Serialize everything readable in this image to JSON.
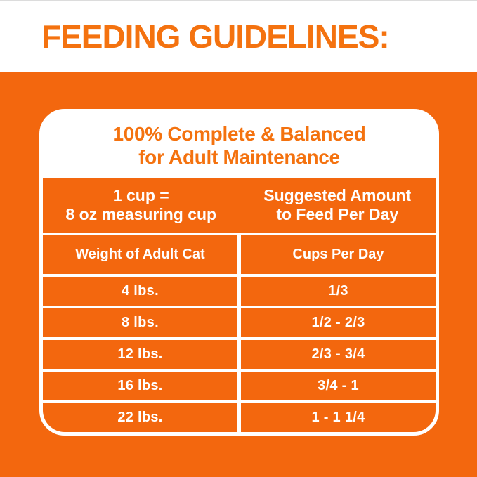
{
  "page": {
    "title": "FEEDING GUIDELINES:",
    "colors": {
      "brand_orange": "#F3670E",
      "heading_orange": "#F4720F",
      "text_on_orange": "#FFFFFF",
      "top_border_gray": "#DCDCDC"
    }
  },
  "card": {
    "heading": {
      "line1": "100% Complete & Balanced",
      "line2": "for Adult Maintenance"
    },
    "measure_header": {
      "left_line1": "1 cup =",
      "left_line2": "8 oz measuring cup",
      "right_line1": "Suggested Amount",
      "right_line2": "to Feed Per Day"
    },
    "table": {
      "columns": [
        "Weight of Adult Cat",
        "Cups Per Day"
      ],
      "rows": [
        {
          "weight": "4 lbs.",
          "cups": "1/3"
        },
        {
          "weight": "8 lbs.",
          "cups": "1/2 - 2/3"
        },
        {
          "weight": "12 lbs.",
          "cups": "2/3 - 3/4"
        },
        {
          "weight": "16 lbs.",
          "cups": "3/4 - 1"
        },
        {
          "weight": "22 lbs.",
          "cups": "1 - 1 1/4"
        }
      ]
    }
  }
}
